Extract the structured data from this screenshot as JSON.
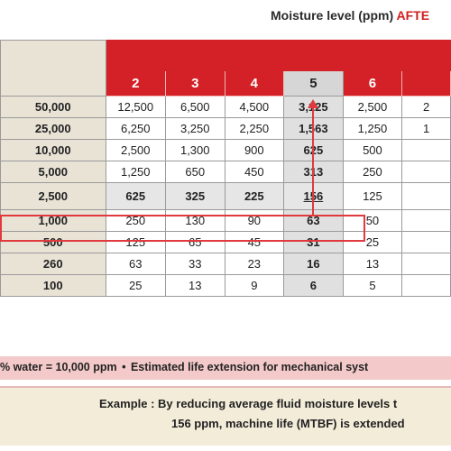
{
  "header": {
    "title_prefix": "Moisture level (ppm) ",
    "title_accent": "AFTE"
  },
  "chart_data": {
    "type": "table",
    "column_headers": [
      "2",
      "3",
      "4",
      "5",
      "6",
      ""
    ],
    "row_headers": [
      "50,000",
      "25,000",
      "10,000",
      "5,000",
      "2,500",
      "1,000",
      "500",
      "260",
      "100"
    ],
    "rows": [
      [
        "12,500",
        "6,500",
        "4,500",
        "3,125",
        "2,500",
        "2"
      ],
      [
        "6,250",
        "3,250",
        "2,250",
        "1,563",
        "1,250",
        "1"
      ],
      [
        "2,500",
        "1,300",
        "900",
        "625",
        "500",
        ""
      ],
      [
        "1,250",
        "650",
        "450",
        "313",
        "250",
        ""
      ],
      [
        "625",
        "325",
        "225",
        "156",
        "125",
        ""
      ],
      [
        "250",
        "130",
        "90",
        "63",
        "50",
        ""
      ],
      [
        "125",
        "65",
        "45",
        "31",
        "25",
        ""
      ],
      [
        "63",
        "33",
        "23",
        "16",
        "13",
        ""
      ],
      [
        "25",
        "13",
        "9",
        "6",
        "5",
        ""
      ]
    ],
    "highlighted_column": "5",
    "highlighted_row": "2,500"
  },
  "footnote": {
    "left": "% water = 10,000 ppm",
    "bullet": "•",
    "right": "Estimated life extension for mechanical syst"
  },
  "example": {
    "line1": "Example :  By reducing average fluid moisture levels t",
    "line2": "156 ppm, machine life (MTBF) is extended"
  },
  "colors": {
    "header_red": "#d42127",
    "row_label_beige": "#e9e3d6",
    "highlight_red": "#e0393e",
    "note_pink": "#f4c9c9",
    "example_beige": "#f3ecd9"
  }
}
